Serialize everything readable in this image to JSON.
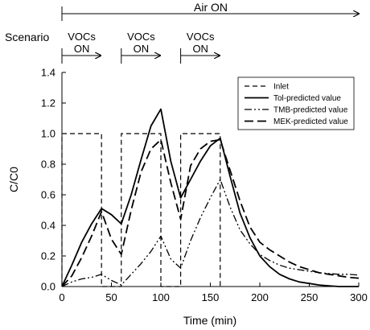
{
  "chart_data": {
    "type": "line",
    "xlabel": "Time (min)",
    "ylabel": "C/C0",
    "xlim": [
      0,
      300
    ],
    "ylim": [
      0,
      1.4
    ],
    "xticks": [
      0,
      50,
      100,
      150,
      200,
      250,
      300
    ],
    "yticks": [
      0.0,
      0.2,
      0.4,
      0.6,
      0.8,
      1.0,
      1.2,
      1.4
    ],
    "ytick_labels": [
      "0.0",
      "0.2",
      "0.4",
      "0.6",
      "0.8",
      "1.0",
      "1.2",
      "1.4"
    ],
    "grid": false,
    "legend_position": "top-right",
    "scenario": {
      "label": "Scenario",
      "air": {
        "label": "Air ON",
        "start": 0,
        "end": 300
      },
      "vocs": [
        {
          "label_line1": "VOCs",
          "label_line2": "ON",
          "start": 0,
          "end": 40
        },
        {
          "label_line1": "VOCs",
          "label_line2": "ON",
          "start": 60,
          "end": 100
        },
        {
          "label_line1": "VOCs",
          "label_line2": "ON",
          "start": 120,
          "end": 160
        }
      ]
    },
    "series": [
      {
        "name": "Inlet",
        "style": "dashed",
        "x": [
          0,
          0,
          40,
          40,
          60,
          60,
          100,
          100,
          120,
          120,
          160,
          160
        ],
        "y": [
          0,
          1.0,
          1.0,
          0,
          0,
          1.0,
          1.0,
          0,
          0,
          1.0,
          1.0,
          0
        ]
      },
      {
        "name": "Tol-predicted value",
        "style": "solid",
        "x": [
          0,
          10,
          20,
          30,
          40,
          50,
          60,
          70,
          80,
          90,
          100,
          110,
          120,
          130,
          140,
          150,
          160,
          170,
          180,
          190,
          200,
          210,
          220,
          230,
          240,
          250,
          260,
          270,
          280,
          290,
          300
        ],
        "y": [
          0.0,
          0.14,
          0.29,
          0.41,
          0.51,
          0.47,
          0.41,
          0.6,
          0.83,
          1.05,
          1.16,
          0.82,
          0.58,
          0.7,
          0.82,
          0.92,
          0.97,
          0.72,
          0.48,
          0.32,
          0.2,
          0.13,
          0.08,
          0.05,
          0.03,
          0.02,
          0.01,
          0.005,
          0.0,
          0.0,
          0.0
        ]
      },
      {
        "name": "TMB-predicted value",
        "style": "dashdotdot",
        "x": [
          0,
          10,
          20,
          30,
          40,
          50,
          60,
          70,
          80,
          90,
          100,
          110,
          120,
          130,
          140,
          150,
          160,
          170,
          180,
          190,
          200,
          210,
          220,
          230,
          240,
          250,
          260,
          270,
          280,
          290,
          300
        ],
        "y": [
          0.0,
          0.03,
          0.05,
          0.06,
          0.08,
          0.04,
          0.01,
          0.08,
          0.15,
          0.23,
          0.33,
          0.18,
          0.12,
          0.3,
          0.45,
          0.58,
          0.7,
          0.52,
          0.37,
          0.28,
          0.21,
          0.17,
          0.14,
          0.12,
          0.11,
          0.1,
          0.09,
          0.085,
          0.08,
          0.08,
          0.075
        ]
      },
      {
        "name": "MEK-predicted value",
        "style": "longdash",
        "x": [
          0,
          10,
          20,
          30,
          40,
          50,
          60,
          70,
          80,
          90,
          100,
          110,
          120,
          130,
          140,
          150,
          160,
          170,
          180,
          190,
          200,
          210,
          220,
          230,
          240,
          250,
          260,
          270,
          280,
          290,
          300
        ],
        "y": [
          0.0,
          0.07,
          0.19,
          0.33,
          0.49,
          0.31,
          0.21,
          0.5,
          0.75,
          0.9,
          0.96,
          0.68,
          0.44,
          0.79,
          0.9,
          0.95,
          0.96,
          0.76,
          0.56,
          0.39,
          0.29,
          0.24,
          0.2,
          0.16,
          0.13,
          0.11,
          0.09,
          0.08,
          0.07,
          0.06,
          0.055
        ]
      }
    ]
  }
}
